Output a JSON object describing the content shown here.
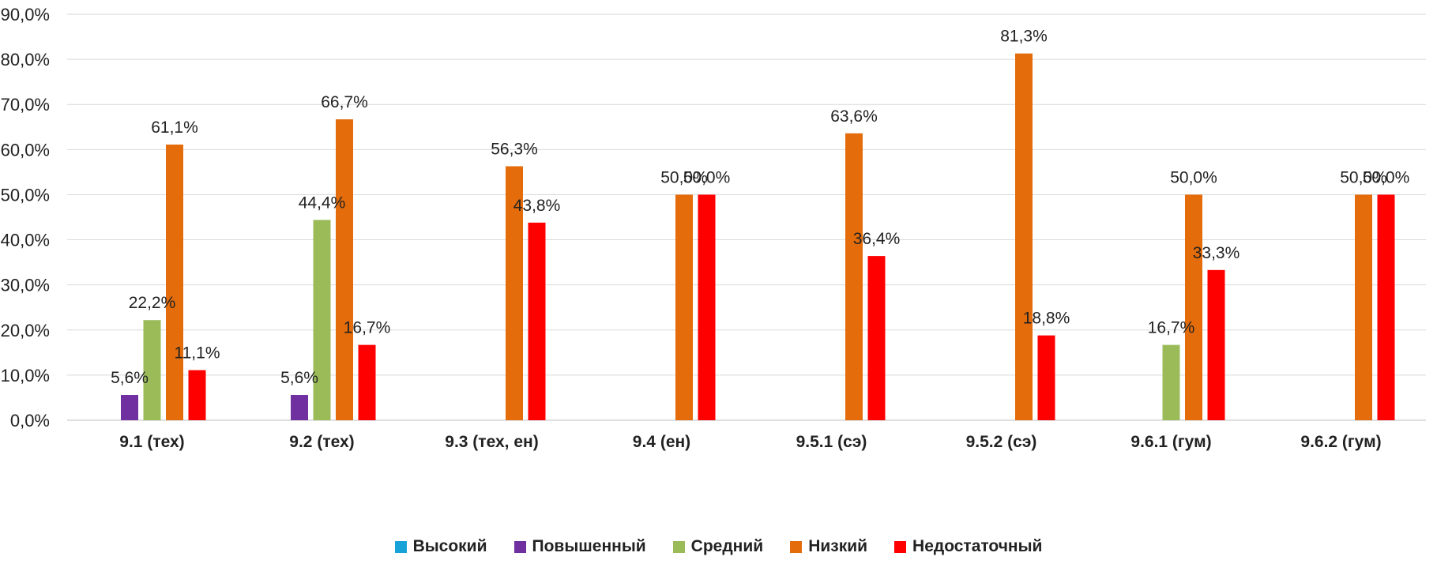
{
  "chart_data": {
    "type": "bar",
    "categories": [
      "9.1 (тех)",
      "9.2 (тех)",
      "9.3 (тех, ен)",
      "9.4 (ен)",
      "9.5.1 (сэ)",
      "9.5.2 (сэ)",
      "9.6.1 (гум)",
      "9.6.2 (гум)"
    ],
    "series": [
      {
        "name": "Высокий",
        "color": "#17A2D8",
        "values": [
          null,
          null,
          null,
          null,
          null,
          null,
          null,
          null
        ],
        "labels": [
          "",
          "",
          "",
          "",
          "",
          "",
          "",
          ""
        ]
      },
      {
        "name": "Повышенный",
        "color": "#7030A0",
        "values": [
          5.6,
          5.6,
          null,
          null,
          null,
          null,
          null,
          null
        ],
        "labels": [
          "5,6%",
          "5,6%",
          "",
          "",
          "",
          "",
          "",
          ""
        ]
      },
      {
        "name": "Средний",
        "color": "#9BBB59",
        "values": [
          22.2,
          44.4,
          null,
          null,
          null,
          null,
          16.7,
          null
        ],
        "labels": [
          "22,2%",
          "44,4%",
          "",
          "",
          "",
          "",
          "16,7%",
          ""
        ]
      },
      {
        "name": "Низкий",
        "color": "#E46C0A",
        "values": [
          61.1,
          66.7,
          56.3,
          50.0,
          63.6,
          81.3,
          50.0,
          50.0
        ],
        "labels": [
          "61,1%",
          "66,7%",
          "56,3%",
          "50,0%",
          "63,6%",
          "81,3%",
          "50,0%",
          "50,0%"
        ]
      },
      {
        "name": "Недостаточный",
        "color": "#FF0000",
        "values": [
          11.1,
          16.7,
          43.8,
          50.0,
          36.4,
          18.8,
          33.3,
          50.0
        ],
        "labels": [
          "11,1%",
          "16,7%",
          "43,8%",
          "50,0%",
          "36,4%",
          "18,8%",
          "33,3%",
          "50,0%"
        ]
      }
    ],
    "yticks": [
      "0,0%",
      "10,0%",
      "20,0%",
      "30,0%",
      "40,0%",
      "50,0%",
      "60,0%",
      "70,0%",
      "80,0%",
      "90,0%"
    ],
    "ylim": [
      0,
      90
    ],
    "grid": true,
    "legend_position": "bottom",
    "title": "",
    "xlabel": "",
    "ylabel": ""
  }
}
